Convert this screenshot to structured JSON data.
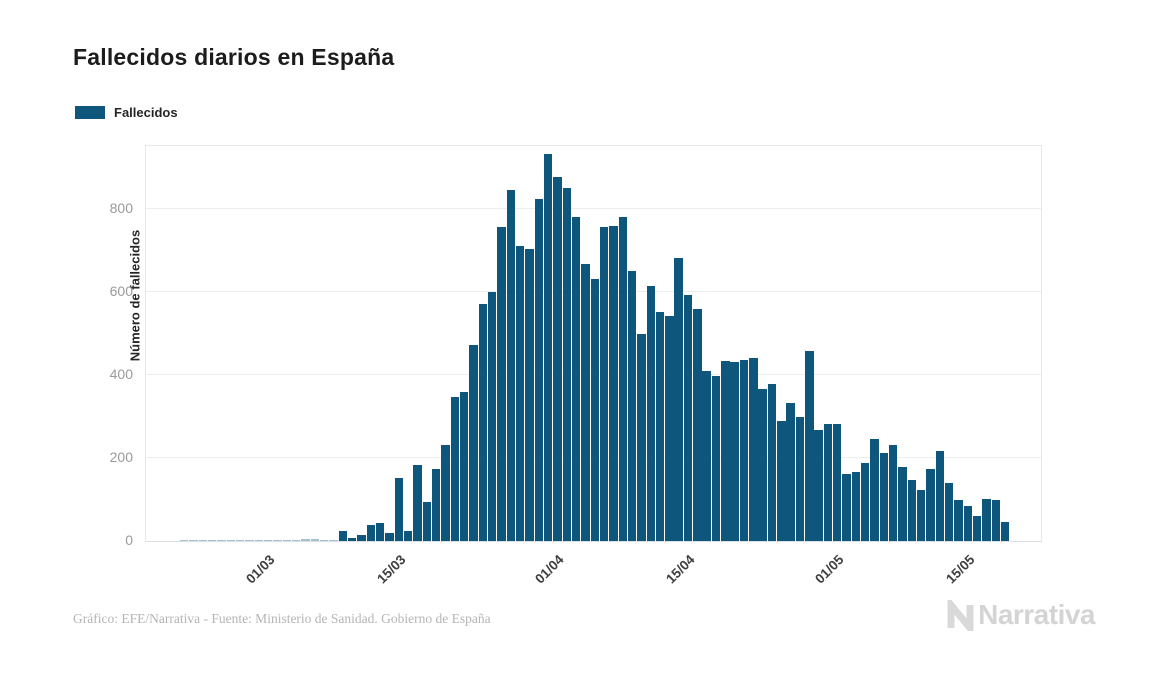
{
  "header": {
    "title": "Fallecidos diarios en España"
  },
  "legend": {
    "label": "Fallecidos",
    "color": "#0f567d"
  },
  "chart_data": {
    "type": "bar",
    "title": "Fallecidos diarios en España",
    "series_name": "Fallecidos",
    "xlabel": "",
    "ylabel": "Número de fallecidos",
    "yticks": [
      0,
      200,
      400,
      600,
      800
    ],
    "ylim": [
      0,
      952
    ],
    "grid": true,
    "legend_position": "top-left",
    "bar_color": "#0f567d",
    "x_tick_labels": [
      "01/03",
      "15/03",
      "01/04",
      "15/04",
      "01/05",
      "15/05"
    ],
    "x_tick_indices": [
      9,
      23,
      40,
      54,
      70,
      84
    ],
    "categories": [
      "21/02",
      "22/02",
      "23/02",
      "24/02",
      "25/02",
      "26/02",
      "27/02",
      "28/02",
      "29/02",
      "01/03",
      "02/03",
      "03/03",
      "04/03",
      "05/03",
      "06/03",
      "07/03",
      "08/03",
      "09/03",
      "10/03",
      "11/03",
      "12/03",
      "13/03",
      "14/03",
      "15/03",
      "16/03",
      "17/03",
      "18/03",
      "19/03",
      "20/03",
      "21/03",
      "22/03",
      "23/03",
      "24/03",
      "25/03",
      "26/03",
      "27/03",
      "28/03",
      "29/03",
      "30/03",
      "31/03",
      "01/04",
      "02/04",
      "03/04",
      "04/04",
      "05/04",
      "06/04",
      "07/04",
      "08/04",
      "09/04",
      "10/04",
      "11/04",
      "12/04",
      "13/04",
      "14/04",
      "15/04",
      "16/04",
      "17/04",
      "18/04",
      "19/04",
      "20/04",
      "21/04",
      "22/04",
      "23/04",
      "24/04",
      "25/04",
      "26/04",
      "27/04",
      "28/04",
      "29/04",
      "30/04",
      "01/05",
      "02/05",
      "03/05",
      "04/05",
      "05/05",
      "06/05",
      "07/05",
      "08/05",
      "09/05",
      "10/05",
      "11/05",
      "12/05",
      "13/05",
      "14/05",
      "15/05",
      "16/05",
      "17/05",
      "18/05",
      "19/05"
    ],
    "values": [
      1,
      1,
      1,
      1,
      1,
      1,
      1,
      1,
      2,
      2,
      2,
      2,
      2,
      5,
      5,
      3,
      2,
      24,
      8,
      14,
      38,
      43,
      20,
      151,
      24,
      183,
      95,
      174,
      231,
      348,
      358,
      473,
      572,
      601,
      758,
      846,
      711,
      703,
      824,
      933,
      877,
      850,
      780,
      668,
      631,
      757,
      760,
      781,
      651,
      499,
      614,
      552,
      542,
      683,
      593,
      558,
      410,
      398,
      434,
      431,
      437,
      441,
      367,
      378,
      289,
      332,
      300,
      459,
      267,
      282,
      282,
      162,
      166,
      187,
      246,
      211,
      231,
      178,
      146,
      124,
      173,
      216,
      140,
      100,
      84,
      60,
      102,
      98,
      47
    ]
  },
  "footer": {
    "source": "Gráfico: EFE/Narrativa - Fuente: Ministerio de Sanidad. Gobierno de España",
    "brand": "Narrativa"
  }
}
